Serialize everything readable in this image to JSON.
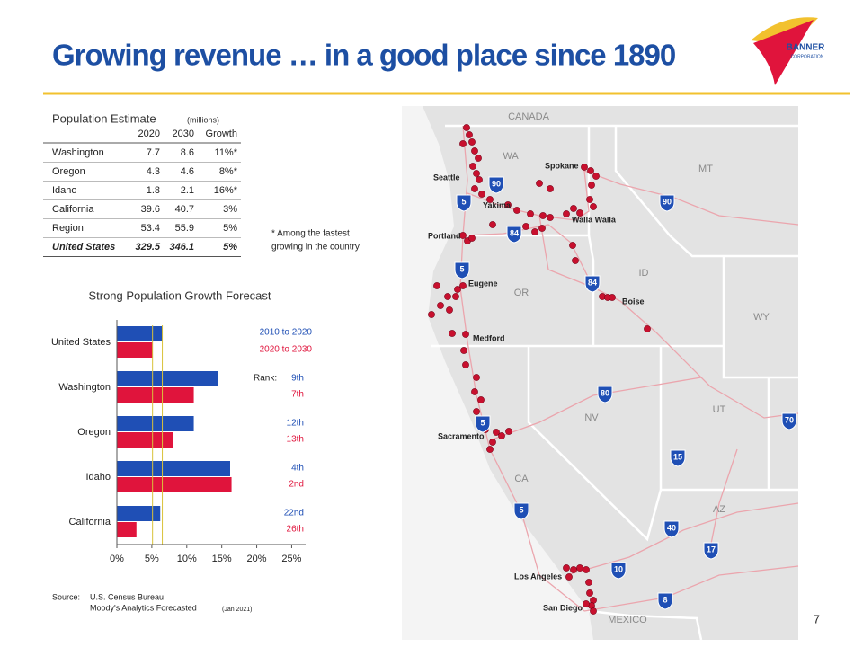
{
  "header": {
    "title": "Growing revenue … in a good place since 1890",
    "logo": [
      "BANNER",
      "CORPORATION"
    ],
    "page": "7"
  },
  "table": {
    "title": "Population Estimate",
    "unit": "(millions)",
    "columns": [
      "2020",
      "2030",
      "Growth"
    ],
    "rows": [
      [
        "Washington",
        "7.7",
        "8.6",
        "11%*"
      ],
      [
        "Oregon",
        "4.3",
        "4.6",
        "8%*"
      ],
      [
        "Idaho",
        "1.8",
        "2.1",
        "16%*"
      ],
      [
        "California",
        "39.6",
        "40.7",
        "3%"
      ],
      [
        "Region",
        "53.4",
        "55.9",
        "5%"
      ],
      [
        "United States",
        "329.5",
        "346.1",
        "5%"
      ]
    ],
    "footnote": [
      "* Among the fastest",
      "growing in the country"
    ]
  },
  "chart_data": {
    "type": "hbar",
    "title": "Strong Population Growth Forecast",
    "categories": [
      "United States",
      "Washington",
      "Oregon",
      "Idaho",
      "California"
    ],
    "series": [
      {
        "name": "2010 to 2020",
        "color": "#1f4fb5",
        "values": [
          6.5,
          14.5,
          11.0,
          16.2,
          6.2
        ],
        "ranks": [
          null,
          "9th",
          "12th",
          "4th",
          "22nd"
        ]
      },
      {
        "name": "2020 to 2030",
        "color": "#e0143c",
        "values": [
          5.1,
          11.0,
          8.1,
          16.4,
          2.8
        ],
        "ranks": [
          null,
          "7th",
          "13th",
          "2nd",
          "26th"
        ]
      }
    ],
    "rank_title": "Rank:",
    "xlim": [
      0,
      27
    ],
    "xticks": [
      {
        "value": 0,
        "label": "0%"
      },
      {
        "value": 5,
        "label": "5%"
      },
      {
        "value": 10,
        "label": "10%"
      },
      {
        "value": 15,
        "label": "15%"
      },
      {
        "value": 20,
        "label": "20%"
      },
      {
        "value": 25,
        "label": "25%"
      }
    ],
    "reference_color": "#d9c23a"
  },
  "source": [
    "Source:",
    "U.S. Census Bureau",
    "Moody's Analytics Forecasted",
    "(Jan 2021)"
  ],
  "map": {
    "regions": [
      "CANADA",
      "WA",
      "MT",
      "ID",
      "OR",
      "WY",
      "NV",
      "UT",
      "CA",
      "AZ",
      "MEXICO"
    ],
    "cities": [
      "Seattle",
      "Spokane",
      "Yakima",
      "Walla Walla",
      "Portland",
      "Eugene",
      "Boise",
      "Medford",
      "Sacramento",
      "Los Angeles",
      "San Diego"
    ],
    "interstates": [
      "90",
      "5",
      "90",
      "84",
      "5",
      "84",
      "80",
      "70",
      "5",
      "15",
      "5",
      "40",
      "17",
      "10",
      "8"
    ]
  }
}
